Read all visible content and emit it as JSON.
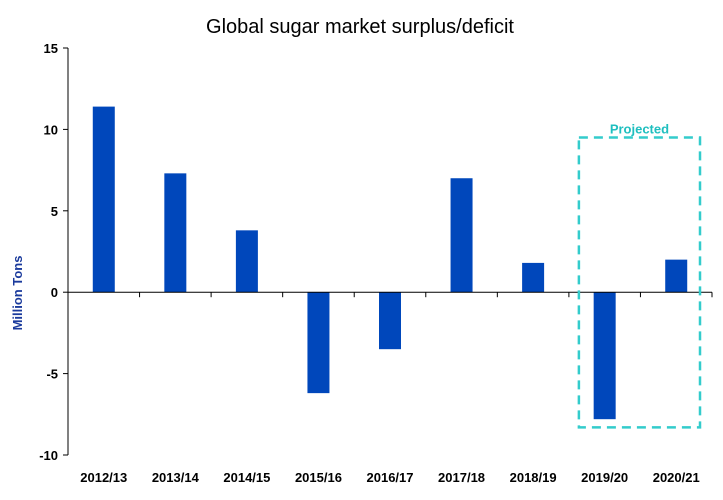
{
  "chart_data": {
    "type": "bar",
    "title": "Global sugar market surplus/deficit",
    "xlabel": "",
    "ylabel": "Million Tons",
    "categories": [
      "2012/13",
      "2013/14",
      "2014/15",
      "2015/16",
      "2016/17",
      "2017/18",
      "2018/19",
      "2019/20",
      "2020/21"
    ],
    "values": [
      11.4,
      7.3,
      3.8,
      -6.2,
      -3.5,
      7.0,
      1.8,
      -7.8,
      2.0
    ],
    "ylim": [
      -10,
      15
    ],
    "yticks": [
      15,
      10,
      5,
      0,
      -5,
      -10
    ],
    "grid": false,
    "legend": "none",
    "annotation": {
      "label": "Projected",
      "categories": [
        "2019/20",
        "2020/21"
      ],
      "y_top": 9.5,
      "y_bottom": -8.3
    }
  },
  "colors": {
    "bar": "#0047bb",
    "annotation": "#33cccc",
    "axis": "#000000"
  }
}
